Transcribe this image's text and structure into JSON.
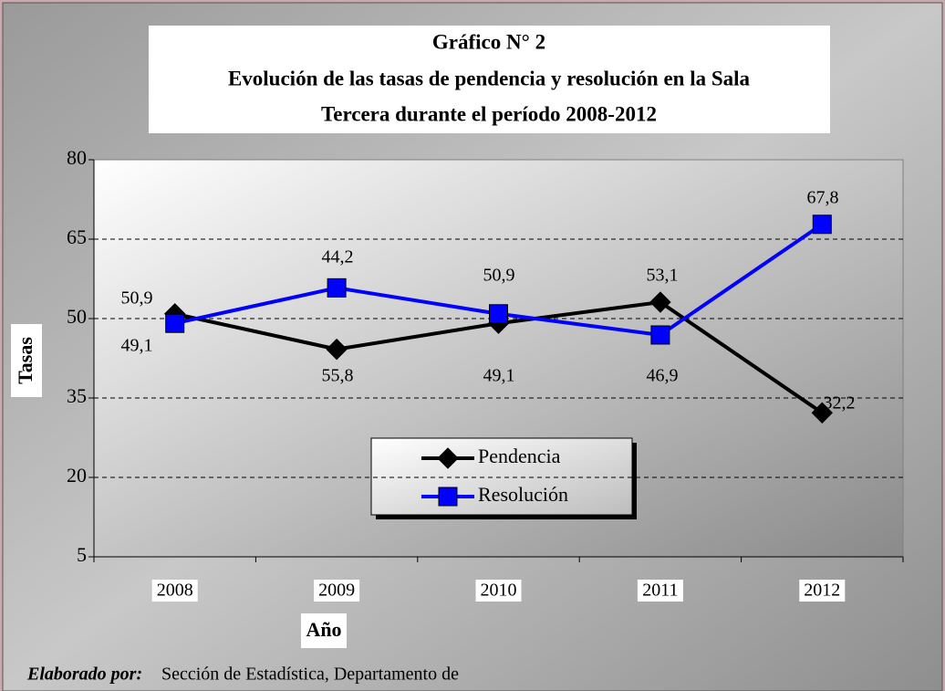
{
  "chart_data": {
    "type": "line",
    "title": [
      "Gráfico N° 2",
      "Evolución de las tasas de pendencia y resolución en la Sala",
      "Tercera durante el período 2008-2012"
    ],
    "x_label": "Año",
    "y_label": "Tasas",
    "categories": [
      "2008",
      "2009",
      "2010",
      "2011",
      "2012"
    ],
    "series": [
      {
        "name": "Pendencia",
        "color": "#000000",
        "marker": "diamond",
        "values": [
          50.9,
          44.2,
          49.1,
          53.1,
          32.2
        ],
        "value_labels": [
          "50,9",
          "44,2",
          "49,1",
          "53,1",
          "32,2"
        ]
      },
      {
        "name": "Resolución",
        "color": "#0000ff",
        "marker": "square",
        "values": [
          49.1,
          55.8,
          50.9,
          46.9,
          67.8
        ],
        "value_labels": [
          "49,1",
          "55,8",
          "50,9",
          "46,9",
          "67,8"
        ]
      }
    ],
    "ylim": [
      5,
      80
    ],
    "yticks": [
      5,
      20,
      35,
      50,
      65,
      80
    ],
    "grid": true
  },
  "footer": {
    "label": "Elaborado por:",
    "text": "Sección de Estadística, Departamento de"
  }
}
